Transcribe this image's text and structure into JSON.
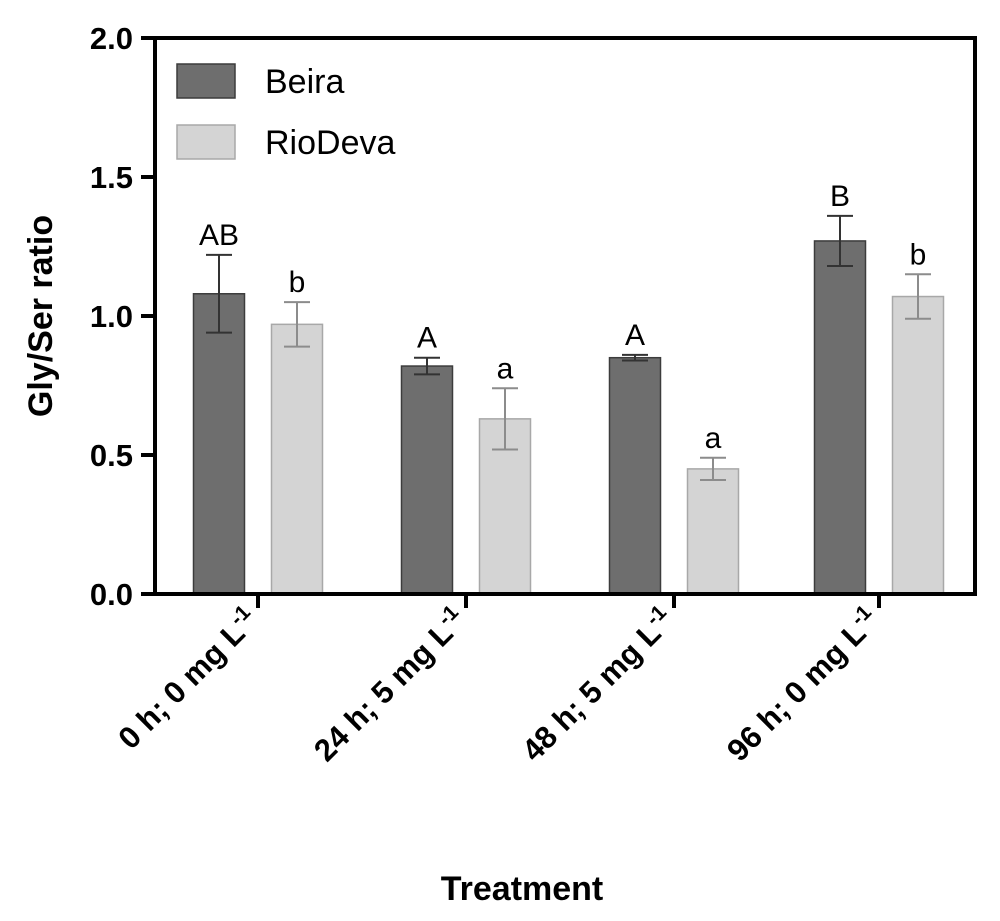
{
  "chart_data": {
    "type": "bar",
    "title": "",
    "xlabel": "Treatment",
    "ylabel": "Gly/Ser ratio",
    "ylim": [
      0,
      2.0
    ],
    "yticks": [
      0.0,
      0.5,
      1.0,
      1.5,
      2.0
    ],
    "ytick_labels": [
      "0.0",
      "0.5",
      "1.0",
      "1.5",
      "2.0"
    ],
    "categories": [
      {
        "base": "0 h; 0 mg L",
        "sup": "-1"
      },
      {
        "base": "24 h; 5 mg L",
        "sup": "-1"
      },
      {
        "base": "48 h; 5 mg L",
        "sup": "-1"
      },
      {
        "base": "96 h; 0 mg L",
        "sup": "-1"
      }
    ],
    "series": [
      {
        "name": "Beira",
        "color": "#6e6e6e",
        "values": [
          1.08,
          0.82,
          0.85,
          1.27
        ],
        "errors": [
          0.14,
          0.03,
          0.01,
          0.09
        ],
        "letters": [
          "AB",
          "A",
          "A",
          "B"
        ]
      },
      {
        "name": "RioDeva",
        "color": "#d4d4d4",
        "values": [
          0.97,
          0.63,
          0.45,
          1.07
        ],
        "errors": [
          0.08,
          0.11,
          0.04,
          0.08
        ],
        "letters": [
          "b",
          "a",
          "a",
          "b"
        ]
      }
    ],
    "legend": "top-left",
    "grid": false
  }
}
